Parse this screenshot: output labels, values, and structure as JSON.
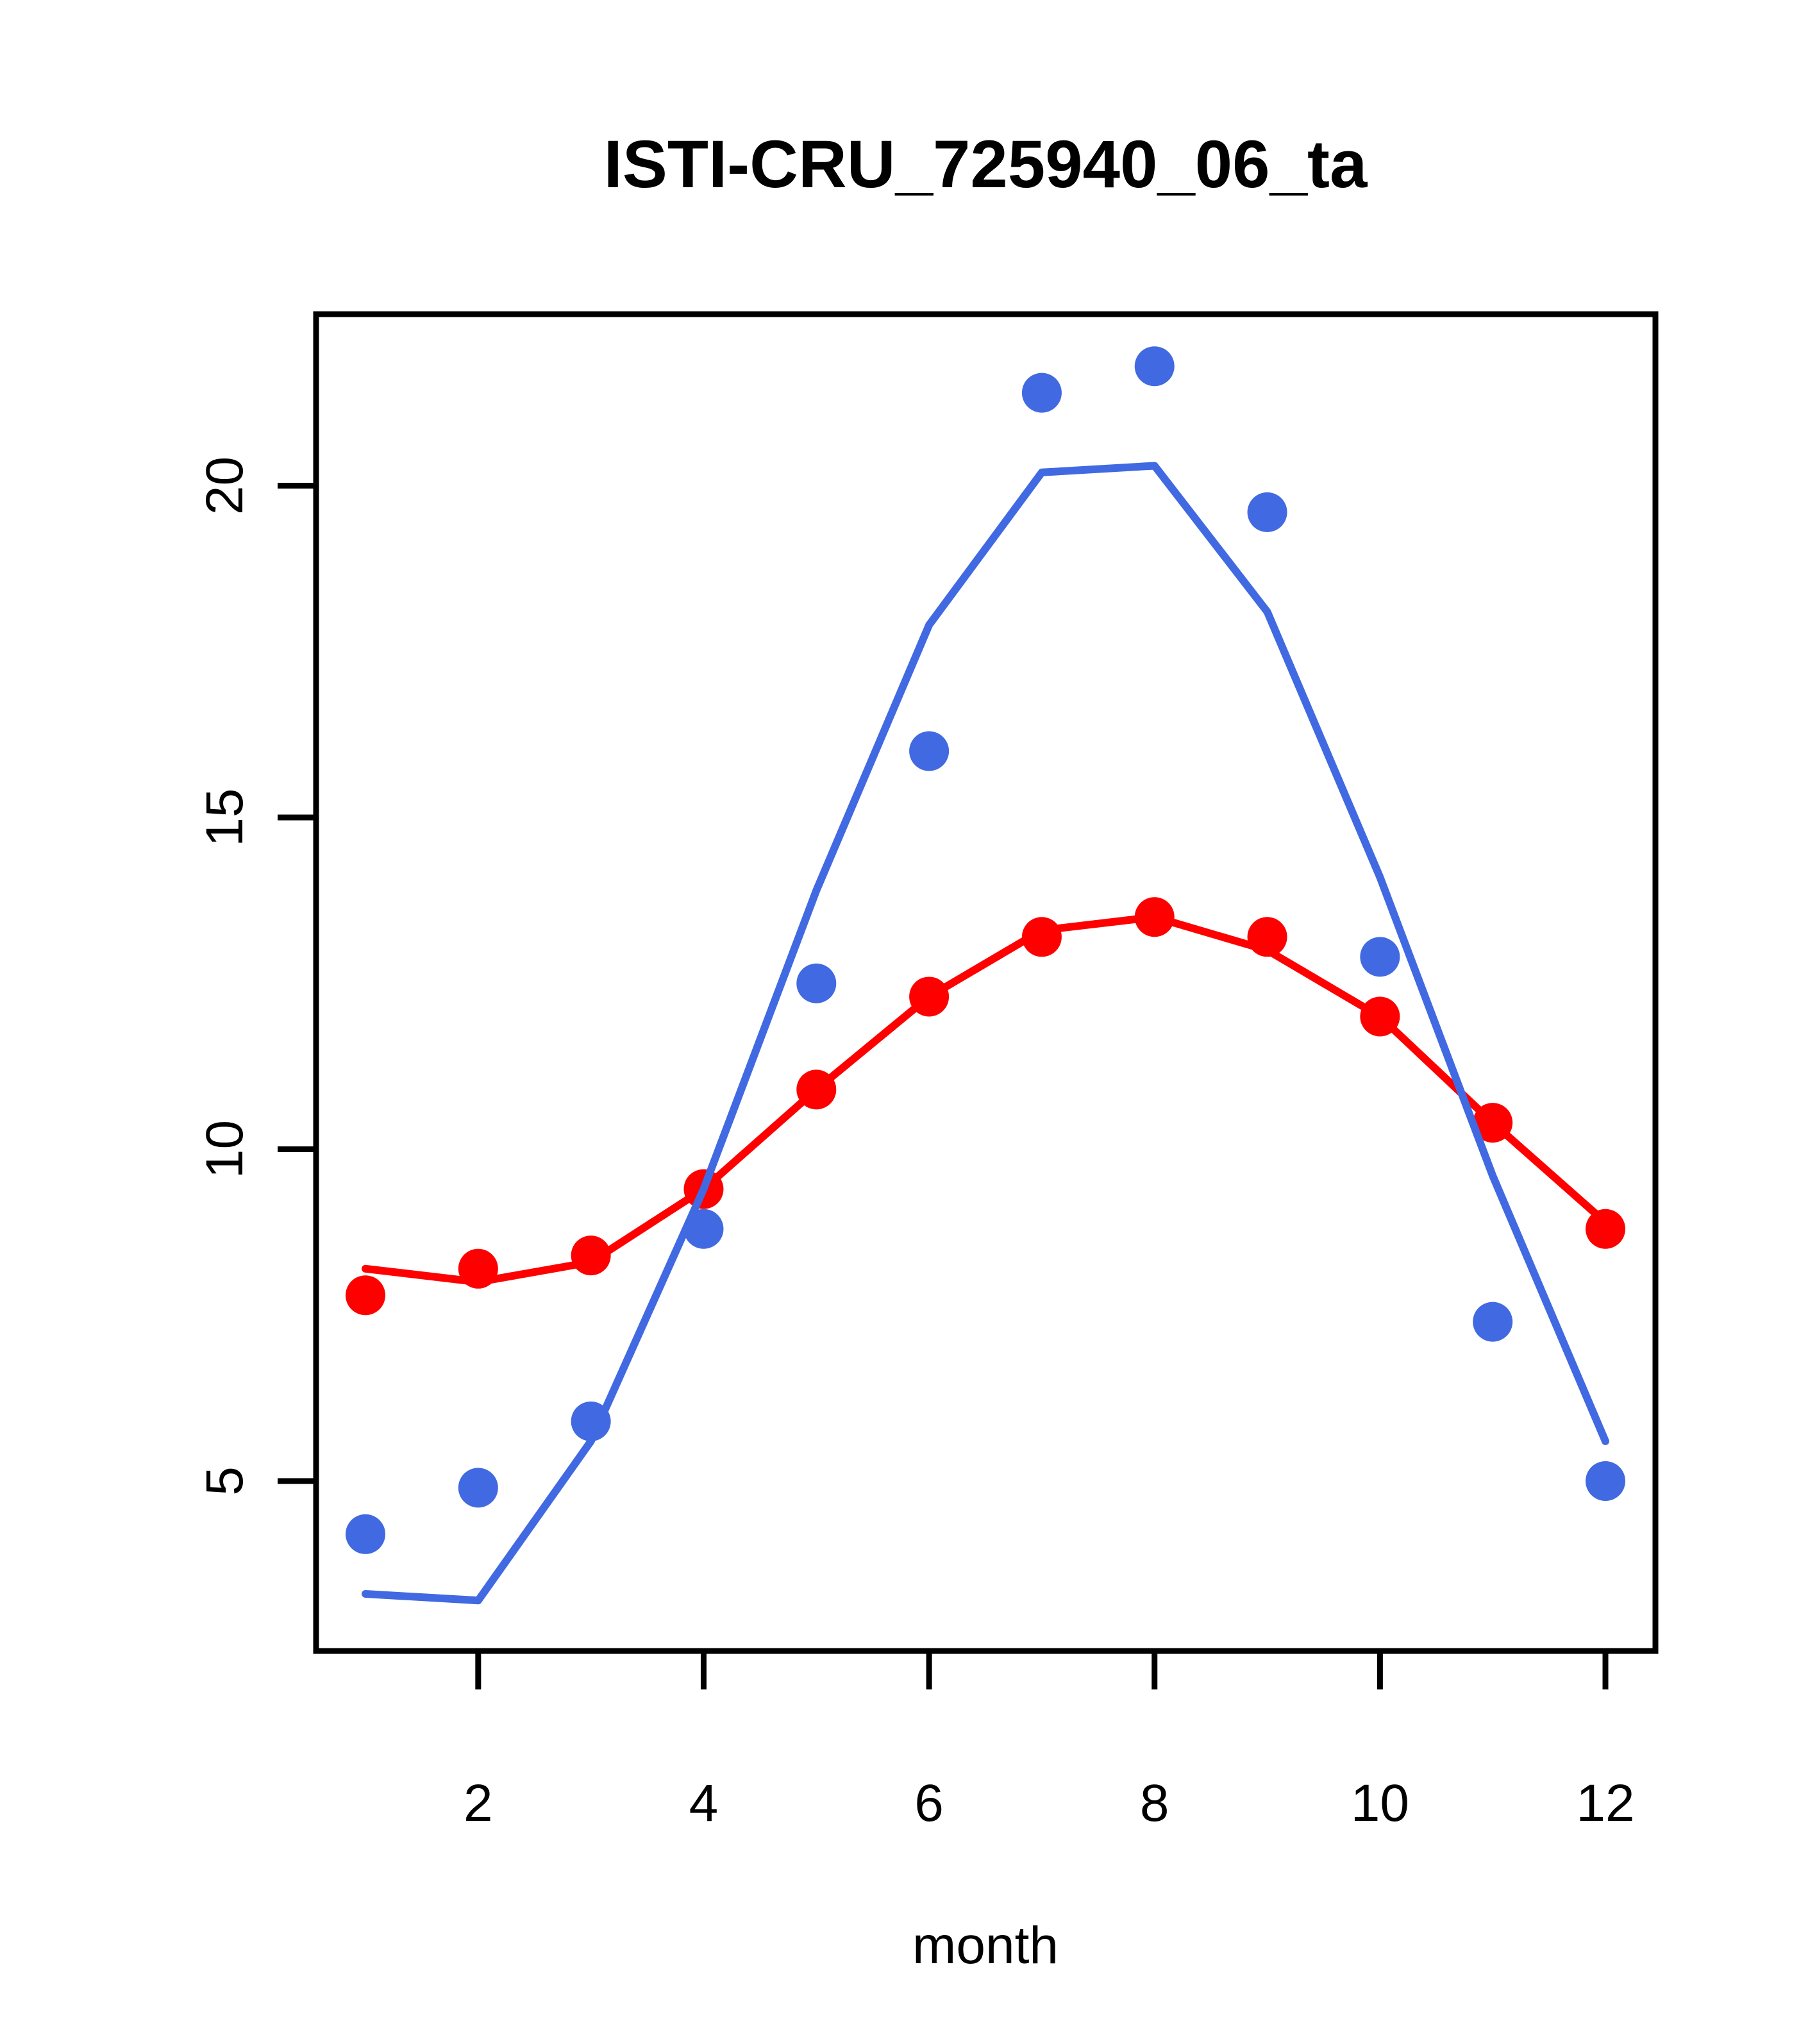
{
  "title": "ISTI-CRU_725940_06_ta",
  "x_axis_label": "month",
  "colors": {
    "blue_series": "#4169E1",
    "red_series": "#FF0000",
    "axis": "#000000",
    "background": "#FFFFFF"
  },
  "chart_data": {
    "type": "line",
    "title": "ISTI-CRU_725940_06_ta",
    "xlabel": "month",
    "ylabel": "",
    "x": [
      1,
      2,
      3,
      4,
      5,
      6,
      7,
      8,
      9,
      10,
      11,
      12
    ],
    "x_ticks": [
      2,
      4,
      6,
      8,
      10,
      12
    ],
    "y_ticks": [
      5,
      10,
      15,
      20
    ],
    "xlim": [
      0.56,
      12.44
    ],
    "ylim": [
      2.4,
      22.6
    ],
    "grid": false,
    "legend_position": "none",
    "series": [
      {
        "name": "red-line",
        "type": "line",
        "color": "#FF0000",
        "values": [
          8.2,
          8.0,
          8.3,
          9.4,
          10.9,
          12.3,
          13.3,
          13.5,
          13.0,
          12.0,
          10.4,
          8.9
        ]
      },
      {
        "name": "red-points",
        "type": "scatter",
        "color": "#FF0000",
        "values": [
          7.8,
          8.2,
          8.4,
          9.4,
          10.9,
          12.3,
          13.2,
          13.5,
          13.2,
          12.0,
          10.4,
          8.8
        ]
      },
      {
        "name": "blue-line",
        "type": "line",
        "color": "#4169E1",
        "values": [
          3.3,
          3.2,
          5.6,
          9.4,
          13.9,
          17.9,
          20.2,
          20.3,
          18.1,
          14.1,
          9.6,
          5.6
        ]
      },
      {
        "name": "blue-points",
        "type": "scatter",
        "color": "#4169E1",
        "values": [
          4.2,
          4.9,
          5.9,
          8.8,
          12.5,
          16.0,
          21.4,
          21.8,
          19.6,
          12.9,
          7.4,
          5.0
        ]
      }
    ]
  }
}
